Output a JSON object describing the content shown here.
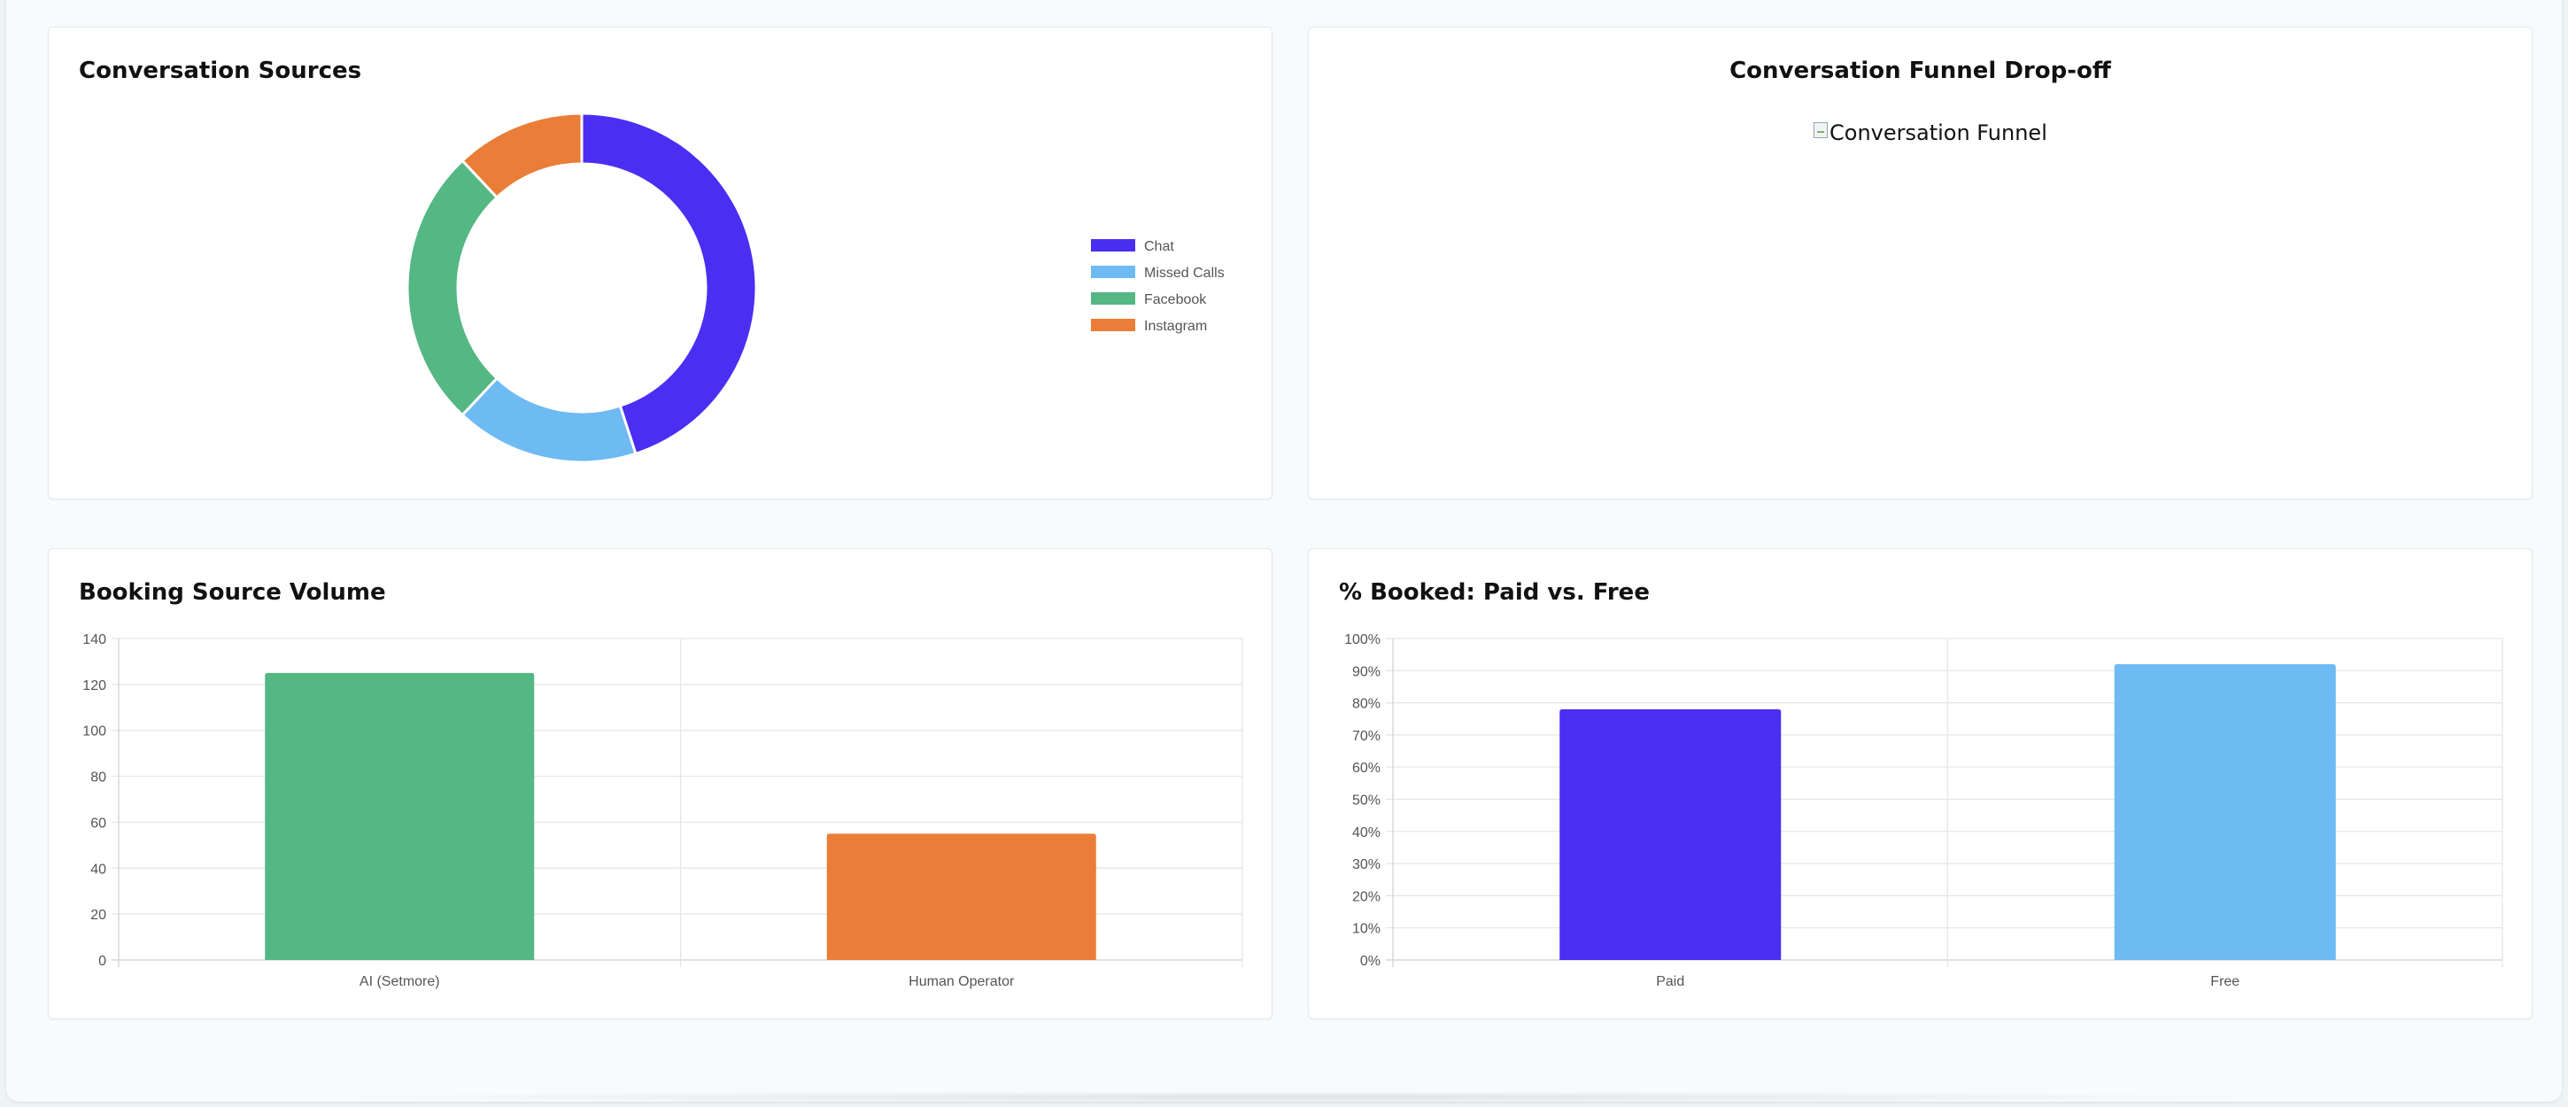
{
  "colors": {
    "chat": "#4a2ef2",
    "missed_calls": "#6ebaf2",
    "facebook": "#54b784",
    "instagram": "#ea7d37",
    "grid": "#e5e5e5",
    "axis_text": "#555555"
  },
  "funnel": {
    "title": "Conversation Funnel Drop-off",
    "image_alt": "Conversation Funnel",
    "image_icon": "broken-image-icon"
  },
  "chart_data": [
    {
      "id": "sources",
      "type": "pie",
      "title": "Conversation Sources",
      "labels": [
        "Chat",
        "Missed Calls",
        "Facebook",
        "Instagram"
      ],
      "values": [
        45,
        17,
        26,
        12
      ],
      "colors": [
        "#4a2ef2",
        "#6ebaf2",
        "#54b784",
        "#ea7d37"
      ],
      "legend": "right"
    },
    {
      "id": "booking",
      "type": "bar",
      "title": "Booking Source Volume",
      "categories": [
        "AI (Setmore)",
        "Human Operator"
      ],
      "values": [
        125,
        55
      ],
      "colors": [
        "#54b784",
        "#ea7d37"
      ],
      "ylim": [
        0,
        140
      ],
      "yticks": [
        0,
        20,
        40,
        60,
        80,
        100,
        120,
        140
      ],
      "xlabel": "",
      "ylabel": "",
      "grid": true
    },
    {
      "id": "paid",
      "type": "bar",
      "title": "% Booked: Paid vs. Free",
      "categories": [
        "Paid",
        "Free"
      ],
      "values": [
        78,
        92
      ],
      "colors": [
        "#4a2ef2",
        "#6ebaf2"
      ],
      "ylim": [
        0,
        100
      ],
      "yticks": [
        0,
        10,
        20,
        30,
        40,
        50,
        60,
        70,
        80,
        90,
        100
      ],
      "ytick_labels": [
        "0%",
        "10%",
        "20%",
        "30%",
        "40%",
        "50%",
        "60%",
        "70%",
        "80%",
        "90%",
        "100%"
      ],
      "xlabel": "",
      "ylabel": "",
      "grid": true
    }
  ]
}
